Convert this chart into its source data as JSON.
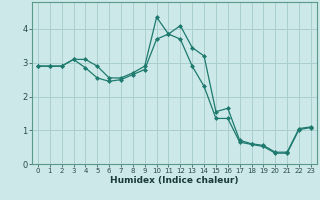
{
  "xlabel": "Humidex (Indice chaleur)",
  "bg_color": "#cce8e8",
  "grid_color": "#aacfcf",
  "line_color": "#1e7a6e",
  "xlim": [
    -0.5,
    23.5
  ],
  "ylim": [
    0,
    4.8
  ],
  "yticks": [
    0,
    1,
    2,
    3,
    4
  ],
  "xticks": [
    0,
    1,
    2,
    3,
    4,
    5,
    6,
    7,
    8,
    9,
    10,
    11,
    12,
    13,
    14,
    15,
    16,
    17,
    18,
    19,
    20,
    21,
    22,
    23
  ],
  "line1_x": [
    0,
    1,
    2,
    3,
    4,
    5,
    6,
    7,
    8,
    9,
    10,
    11,
    12,
    13,
    14,
    15,
    16,
    17,
    18,
    19,
    20,
    21,
    22,
    23
  ],
  "line1_y": [
    2.9,
    2.9,
    2.9,
    3.1,
    3.1,
    2.9,
    2.55,
    2.55,
    2.7,
    2.9,
    4.35,
    3.85,
    4.1,
    3.45,
    3.2,
    1.55,
    1.65,
    0.7,
    0.6,
    0.55,
    0.35,
    0.35,
    1.05,
    1.1
  ],
  "line2_x": [
    0,
    1,
    2,
    3,
    4,
    5,
    6,
    7,
    8,
    9,
    10,
    11,
    12,
    13,
    14,
    15,
    16,
    17,
    18,
    19,
    20,
    21,
    22,
    23
  ],
  "line2_y": [
    2.9,
    2.9,
    2.9,
    3.1,
    2.85,
    2.55,
    2.45,
    2.5,
    2.65,
    2.8,
    3.7,
    3.85,
    3.7,
    2.9,
    2.3,
    1.35,
    1.35,
    0.65,
    0.58,
    0.52,
    0.32,
    0.32,
    1.02,
    1.08
  ]
}
